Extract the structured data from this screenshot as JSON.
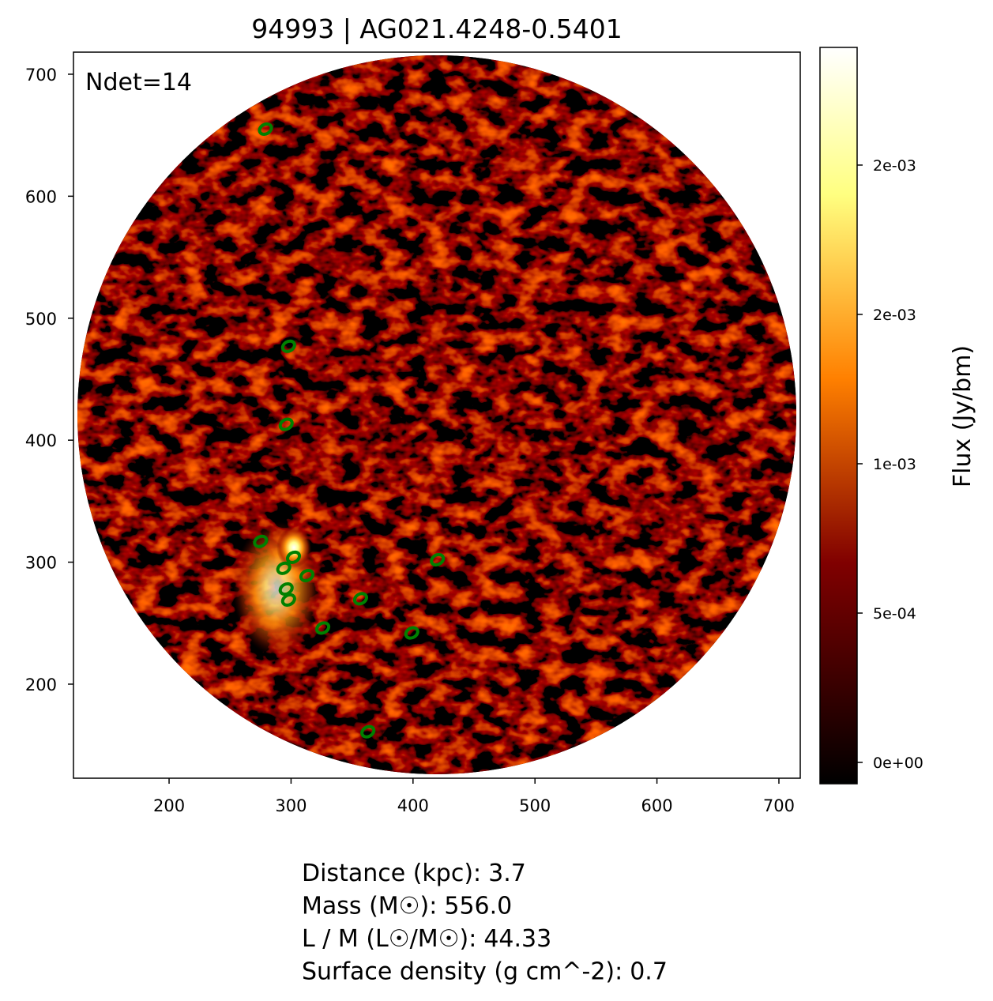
{
  "chart_data": {
    "type": "image",
    "title": "94993 | AG021.4248-0.5401",
    "annotation": "Ndet=14",
    "detections": {
      "name": "detections",
      "color": "#008000",
      "x": [
        279,
        298,
        296,
        275,
        302,
        294,
        313,
        296,
        298,
        357,
        420,
        326,
        399,
        363
      ],
      "y": [
        655,
        477,
        413,
        317,
        304,
        295,
        289,
        278,
        269,
        270,
        302,
        246,
        242,
        161
      ]
    },
    "xlim": [
      121.6,
      717.5
    ],
    "ylim": [
      122.9,
      718.1
    ],
    "xticks": [
      200,
      300,
      400,
      500,
      600,
      700
    ],
    "yticks": [
      200,
      300,
      400,
      500,
      600,
      700
    ],
    "colorbar": {
      "label": "Flux (Jy/bm)",
      "lim": [
        -7.14e-05,
        0.002394
      ],
      "ticks": [
        {
          "value": 0,
          "label": "0e+00"
        },
        {
          "value": 0.0005,
          "label": "5e-04"
        },
        {
          "value": 0.001,
          "label": "1e-03"
        },
        {
          "value": 0.0015,
          "label": "2e-03"
        },
        {
          "value": 0.002,
          "label": "2e-03"
        }
      ]
    },
    "info": [
      {
        "label": "Distance (kpc):",
        "value": "3.7"
      },
      {
        "label": "Mass (M☉):",
        "value": "556.0"
      },
      {
        "label": "L / M (L☉/M☉):",
        "value": "44.33"
      },
      {
        "label": "Surface density (g cm^-2):",
        "value": "0.7"
      }
    ]
  }
}
